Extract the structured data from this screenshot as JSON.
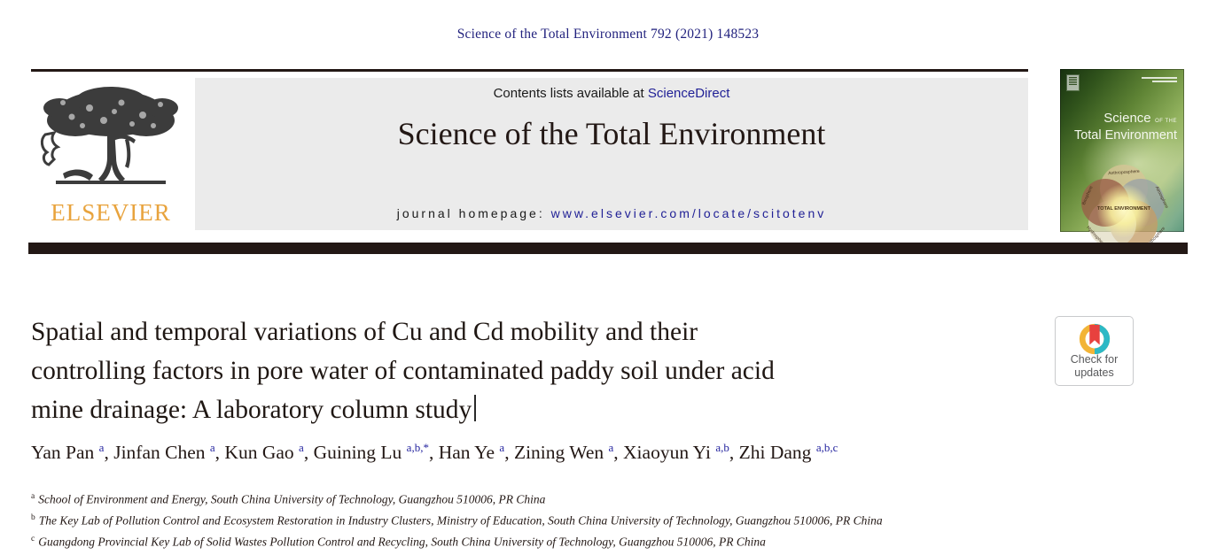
{
  "page": {
    "citation": "Science of the Total Environment 792 (2021) 148523"
  },
  "header": {
    "contents_prefix": "Contents lists available at ",
    "contents_link": "ScienceDirect",
    "journal_title": "Science of the Total Environment",
    "homepage_prefix": "journal homepage: ",
    "homepage_url": "www.elsevier.com/locate/scitotenv",
    "elsevier_wordmark": "ELSEVIER",
    "cover": {
      "title_word1": "Science",
      "title_small": "OF THE",
      "title_word2": "Total Environment",
      "center_label": "TOTAL ENVIRONMENT",
      "petals": [
        "Anthroposphere",
        "Atmosphere",
        "Lithosphere",
        "Hydrosphere",
        "Biosphere"
      ]
    }
  },
  "article": {
    "title_line1": "Spatial and temporal variations of Cu and Cd mobility and their",
    "title_line2": "controlling factors in pore water of contaminated paddy soil under acid",
    "title_line3": "mine drainage: A laboratory column study",
    "authors": [
      {
        "name": "Yan Pan",
        "sup": "a"
      },
      {
        "name": "Jinfan Chen",
        "sup": "a"
      },
      {
        "name": "Kun Gao",
        "sup": "a"
      },
      {
        "name": "Guining Lu",
        "sup": "a,b,*"
      },
      {
        "name": "Han Ye",
        "sup": "a"
      },
      {
        "name": "Zining Wen",
        "sup": "a"
      },
      {
        "name": "Xiaoyun Yi",
        "sup": "a,b"
      },
      {
        "name": "Zhi Dang",
        "sup": "a,b,c"
      }
    ],
    "affiliations": [
      {
        "sup": "a",
        "text": "School of Environment and Energy, South China University of Technology, Guangzhou 510006, PR China"
      },
      {
        "sup": "b",
        "text": "The Key Lab of Pollution Control and Ecosystem Restoration in Industry Clusters, Ministry of Education, South China University of Technology, Guangzhou 510006, PR China"
      },
      {
        "sup": "c",
        "text": "Guangdong Provincial Key Lab of Solid Wastes Pollution Control and Recycling, South China University of Technology, Guangzhou 510006, PR China"
      }
    ]
  },
  "badge": {
    "line1": "Check for",
    "line2": "updates"
  },
  "colors": {
    "ink": "#231815",
    "navy_link": "#212196",
    "citation_navy": "#22227e",
    "elsevier_orange": "#e8a33d",
    "masthead_bg": "#ebebeb",
    "crossmark_yellow": "#f2b437",
    "crossmark_teal": "#2cb9c6",
    "crossmark_red": "#e8413e"
  }
}
